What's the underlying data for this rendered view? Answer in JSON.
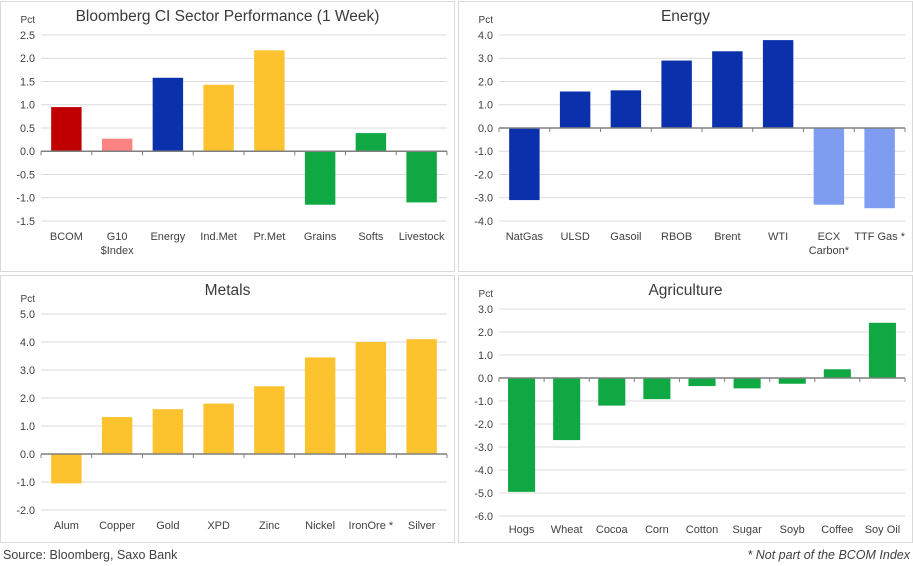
{
  "footer": {
    "source": "Source: Bloomberg, Saxo Bank",
    "note": "* Not part of the BCOM Index"
  },
  "palette": {
    "dark_red": "#C00000",
    "pink": "#FB8381",
    "dark_blue": "#0A31AB",
    "light_blue": "#7E9CF0",
    "gold": "#FDC32F",
    "green": "#10A842",
    "gridline": "#DBDBDB",
    "axis": "#7F7F7F",
    "text": "#404040",
    "title": "#3A3A3A"
  },
  "chart_data": [
    {
      "type": "bar",
      "title": "Bloomberg CI Sector Performance (1 Week)",
      "ylabel": "Pct",
      "ylim": [
        -1.5,
        2.5
      ],
      "ytick_step": 0.5,
      "grid": true,
      "categories": [
        "BCOM",
        "G10\n$Index",
        "Energy",
        "Ind.Met",
        "Pr.Met",
        "Grains",
        "Softs",
        "Livestock"
      ],
      "values": [
        0.95,
        0.27,
        1.58,
        1.43,
        2.17,
        -1.15,
        0.39,
        -1.1
      ],
      "bar_colors": [
        "dark_red",
        "pink",
        "dark_blue",
        "gold",
        "gold",
        "green",
        "green",
        "green"
      ]
    },
    {
      "type": "bar",
      "title": "Energy",
      "ylabel": "Pct",
      "ylim": [
        -4.0,
        4.0
      ],
      "ytick_step": 1.0,
      "grid": true,
      "categories": [
        "NatGas",
        "ULSD",
        "Gasoil",
        "RBOB",
        "Brent",
        "WTI",
        "ECX\nCarbon*",
        "TTF Gas *"
      ],
      "values": [
        -3.1,
        1.57,
        1.62,
        2.9,
        3.3,
        3.78,
        -3.3,
        -3.45
      ],
      "bar_colors": [
        "dark_blue",
        "dark_blue",
        "dark_blue",
        "dark_blue",
        "dark_blue",
        "dark_blue",
        "light_blue",
        "light_blue"
      ]
    },
    {
      "type": "bar",
      "title": "Metals",
      "ylabel": "Pct",
      "ylim": [
        -2.0,
        5.0
      ],
      "ytick_step": 1.0,
      "grid": true,
      "categories": [
        "Alum",
        "Copper",
        "Gold",
        "XPD",
        "Zinc",
        "Nickel",
        "IronOre *",
        "Silver"
      ],
      "values": [
        -1.05,
        1.32,
        1.6,
        1.8,
        2.42,
        3.45,
        4.0,
        4.1
      ],
      "bar_colors": [
        "gold",
        "gold",
        "gold",
        "gold",
        "gold",
        "gold",
        "gold",
        "gold"
      ]
    },
    {
      "type": "bar",
      "title": "Agriculture",
      "ylabel": "Pct",
      "ylim": [
        -6.0,
        3.0
      ],
      "ytick_step": 1.0,
      "grid": true,
      "categories": [
        "Hogs",
        "Wheat",
        "Cocoa",
        "Corn",
        "Cotton",
        "Sugar",
        "Soyb",
        "Coffee",
        "Soy Oil"
      ],
      "values": [
        -4.95,
        -2.7,
        -1.2,
        -0.92,
        -0.35,
        -0.45,
        -0.25,
        0.38,
        2.4
      ],
      "bar_colors": [
        "green",
        "green",
        "green",
        "green",
        "green",
        "green",
        "green",
        "green",
        "green"
      ]
    }
  ]
}
